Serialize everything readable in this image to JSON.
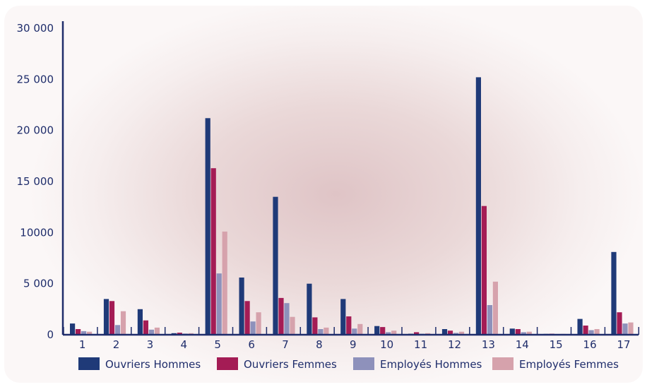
{
  "chart_data": {
    "type": "bar",
    "title": "",
    "xlabel": "",
    "ylabel": "",
    "ylim": [
      0,
      30000
    ],
    "yticks": [
      {
        "value": 0,
        "label": "0"
      },
      {
        "value": 5000,
        "label": "5 000"
      },
      {
        "value": 10000,
        "label": "10000"
      },
      {
        "value": 15000,
        "label": "15 000"
      },
      {
        "value": 20000,
        "label": "20 000"
      },
      {
        "value": 25000,
        "label": "25 000"
      },
      {
        "value": 30000,
        "label": "30 000"
      }
    ],
    "categories": [
      "1",
      "2",
      "3",
      "4",
      "5",
      "6",
      "7",
      "8",
      "9",
      "10",
      "11",
      "12",
      "13",
      "14",
      "15",
      "16",
      "17"
    ],
    "series": [
      {
        "name": "Ouvriers Hommes",
        "color": "#1f3a78",
        "values": [
          1100,
          3500,
          2500,
          150,
          21200,
          5600,
          13500,
          5000,
          3500,
          850,
          100,
          550,
          25200,
          600,
          80,
          1550,
          8100
        ]
      },
      {
        "name": "Ouvriers Femmes",
        "color": "#a41c55",
        "values": [
          550,
          3300,
          1400,
          200,
          16300,
          3300,
          3600,
          1700,
          1800,
          750,
          250,
          400,
          12600,
          550,
          100,
          900,
          2200
        ]
      },
      {
        "name": "Employés Hommes",
        "color": "#8e91bb",
        "values": [
          350,
          950,
          500,
          120,
          6000,
          1300,
          3100,
          550,
          600,
          250,
          100,
          180,
          2900,
          250,
          70,
          450,
          1100
        ]
      },
      {
        "name": "Employés Femmes",
        "color": "#d6a2ac",
        "values": [
          300,
          2300,
          700,
          150,
          10100,
          2200,
          1750,
          700,
          1050,
          400,
          150,
          300,
          5200,
          300,
          80,
          550,
          1200
        ]
      }
    ],
    "legend_position": "bottom",
    "grid": false
  }
}
